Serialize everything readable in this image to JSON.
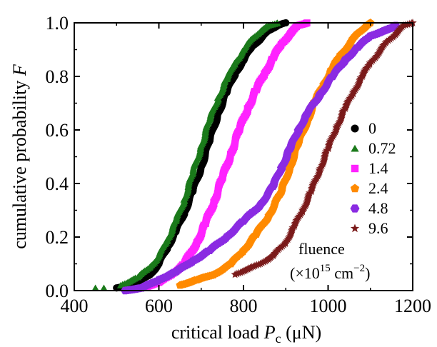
{
  "chart_data": {
    "type": "line",
    "xlabel": "critical load P_c (μN)",
    "xlabel_parts": {
      "main": "critical load ",
      "var": "P",
      "sub": "c",
      "unit": " (μN)"
    },
    "ylabel": "cumulative probability F",
    "ylabel_parts": {
      "main": "cumulative probability ",
      "var": "F"
    },
    "xlim": [
      400,
      1200
    ],
    "ylim": [
      0.0,
      1.0
    ],
    "xticks": [
      "400",
      "600",
      "800",
      "1000",
      "1200"
    ],
    "yticks": [
      "0.0",
      "0.2",
      "0.4",
      "0.6",
      "0.8",
      "1.0"
    ],
    "grid": false,
    "legend_placement": "right",
    "legend_title": {
      "line1": "fluence",
      "line2_prefix": "(×10",
      "line2_exp": "15",
      "line2_unit": " cm",
      "line2_unit_exp": "−2",
      "line2_suffix": ")"
    },
    "series": [
      {
        "name": "0",
        "color": "#000000",
        "marker": "circle",
        "points": [
          [
            500,
            0.01
          ],
          [
            550,
            0.03
          ],
          [
            580,
            0.06
          ],
          [
            600,
            0.1
          ],
          [
            620,
            0.16
          ],
          [
            640,
            0.22
          ],
          [
            660,
            0.29
          ],
          [
            680,
            0.37
          ],
          [
            700,
            0.46
          ],
          [
            720,
            0.56
          ],
          [
            740,
            0.66
          ],
          [
            760,
            0.74
          ],
          [
            780,
            0.81
          ],
          [
            800,
            0.86
          ],
          [
            820,
            0.91
          ],
          [
            840,
            0.94
          ],
          [
            860,
            0.97
          ],
          [
            880,
            0.99
          ],
          [
            900,
            1.0
          ]
        ]
      },
      {
        "name": "0.72",
        "color": "#1a7a1a",
        "marker": "triangle",
        "points": [
          [
            450,
            0.01
          ],
          [
            470,
            0.01
          ],
          [
            510,
            0.02
          ],
          [
            550,
            0.05
          ],
          [
            580,
            0.09
          ],
          [
            600,
            0.13
          ],
          [
            620,
            0.19
          ],
          [
            640,
            0.26
          ],
          [
            660,
            0.34
          ],
          [
            680,
            0.44
          ],
          [
            700,
            0.54
          ],
          [
            720,
            0.64
          ],
          [
            740,
            0.72
          ],
          [
            760,
            0.79
          ],
          [
            780,
            0.85
          ],
          [
            800,
            0.9
          ],
          [
            820,
            0.94
          ],
          [
            840,
            0.97
          ],
          [
            860,
            0.99
          ],
          [
            880,
            1.0
          ]
        ]
      },
      {
        "name": "1.4",
        "color": "#ff22ff",
        "marker": "square",
        "points": [
          [
            560,
            0.01
          ],
          [
            600,
            0.03
          ],
          [
            630,
            0.06
          ],
          [
            660,
            0.1
          ],
          [
            690,
            0.18
          ],
          [
            710,
            0.25
          ],
          [
            730,
            0.33
          ],
          [
            750,
            0.42
          ],
          [
            770,
            0.51
          ],
          [
            790,
            0.6
          ],
          [
            810,
            0.68
          ],
          [
            830,
            0.75
          ],
          [
            850,
            0.81
          ],
          [
            870,
            0.87
          ],
          [
            890,
            0.92
          ],
          [
            910,
            0.96
          ],
          [
            930,
            0.99
          ],
          [
            950,
            1.0
          ]
        ]
      },
      {
        "name": "2.4",
        "color": "#ff8a00",
        "marker": "pentagon",
        "points": [
          [
            650,
            0.02
          ],
          [
            690,
            0.04
          ],
          [
            730,
            0.06
          ],
          [
            770,
            0.1
          ],
          [
            800,
            0.15
          ],
          [
            830,
            0.21
          ],
          [
            860,
            0.28
          ],
          [
            890,
            0.37
          ],
          [
            910,
            0.46
          ],
          [
            930,
            0.55
          ],
          [
            950,
            0.63
          ],
          [
            970,
            0.71
          ],
          [
            990,
            0.77
          ],
          [
            1010,
            0.83
          ],
          [
            1030,
            0.88
          ],
          [
            1050,
            0.92
          ],
          [
            1070,
            0.96
          ],
          [
            1090,
            0.99
          ],
          [
            1100,
            1.0
          ]
        ]
      },
      {
        "name": "4.8",
        "color": "#8a2be2",
        "marker": "hexagon",
        "points": [
          [
            520,
            0.0
          ],
          [
            560,
            0.01
          ],
          [
            600,
            0.04
          ],
          [
            640,
            0.07
          ],
          [
            680,
            0.11
          ],
          [
            720,
            0.15
          ],
          [
            760,
            0.2
          ],
          [
            800,
            0.26
          ],
          [
            840,
            0.32
          ],
          [
            870,
            0.39
          ],
          [
            890,
            0.46
          ],
          [
            910,
            0.53
          ],
          [
            930,
            0.6
          ],
          [
            950,
            0.66
          ],
          [
            980,
            0.73
          ],
          [
            1010,
            0.8
          ],
          [
            1040,
            0.86
          ],
          [
            1070,
            0.91
          ],
          [
            1100,
            0.95
          ],
          [
            1130,
            0.97
          ],
          [
            1150,
            0.98
          ],
          [
            1160,
            0.99
          ]
        ]
      },
      {
        "name": "9.6",
        "color": "#7a1a1a",
        "marker": "star",
        "points": [
          [
            780,
            0.06
          ],
          [
            810,
            0.08
          ],
          [
            840,
            0.1
          ],
          [
            870,
            0.13
          ],
          [
            900,
            0.18
          ],
          [
            920,
            0.24
          ],
          [
            940,
            0.3
          ],
          [
            960,
            0.37
          ],
          [
            980,
            0.45
          ],
          [
            1000,
            0.53
          ],
          [
            1020,
            0.61
          ],
          [
            1040,
            0.68
          ],
          [
            1060,
            0.74
          ],
          [
            1080,
            0.8
          ],
          [
            1100,
            0.85
          ],
          [
            1120,
            0.89
          ],
          [
            1140,
            0.93
          ],
          [
            1160,
            0.96
          ],
          [
            1180,
            0.99
          ],
          [
            1200,
            1.0
          ]
        ]
      }
    ]
  }
}
